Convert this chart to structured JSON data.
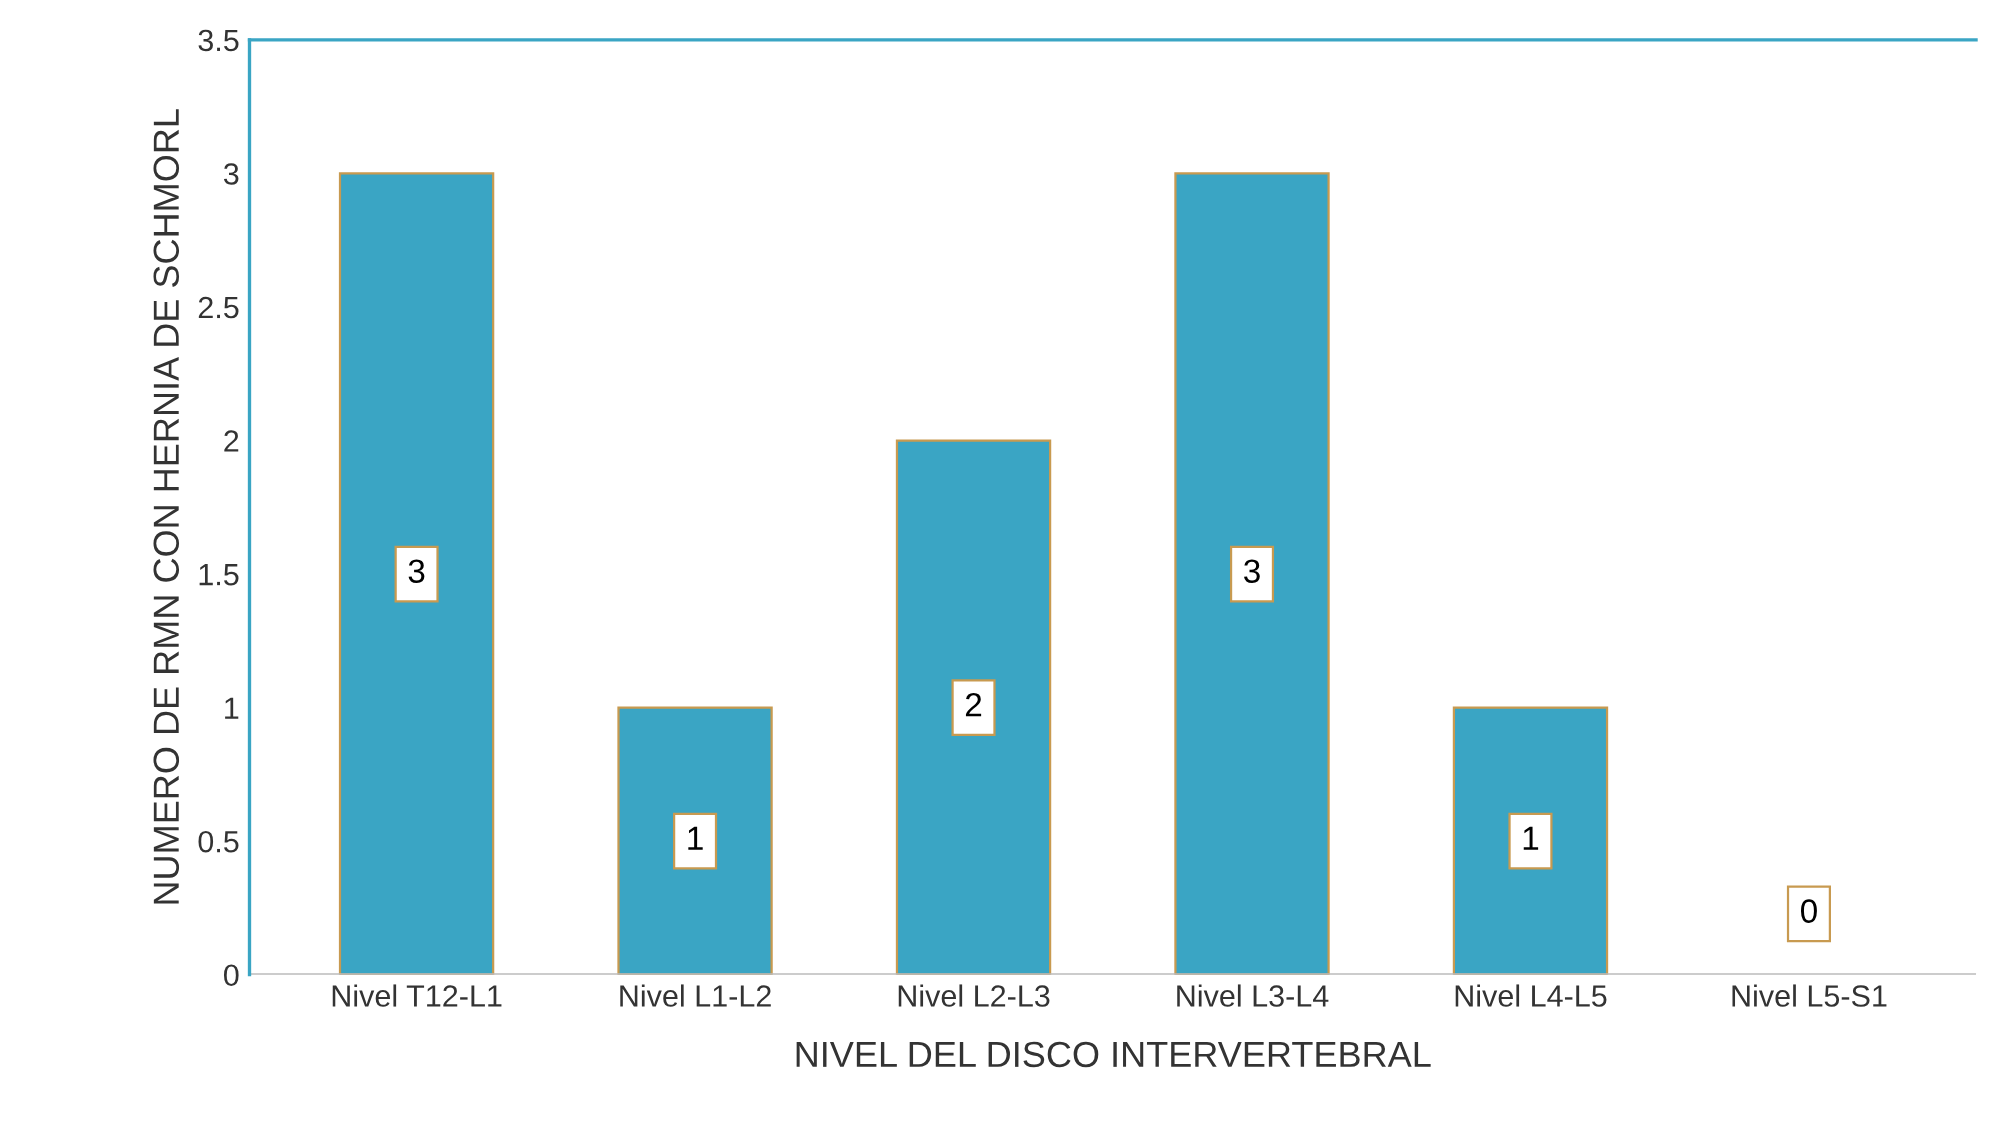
{
  "chart_data": {
    "type": "bar",
    "xlabel": "NIVEL DEL DISCO INTERVERTEBRAL",
    "ylabel": "NUMERO DE RMN CON HERNIA DE SCHMORL",
    "categories": [
      "Nivel T12-L1",
      "Nivel L1-L2",
      "Nivel L2-L3",
      "Nivel L3-L4",
      "Nivel L4-L5",
      "Nivel L5-S1"
    ],
    "values": [
      3,
      1,
      2,
      3,
      1,
      0
    ],
    "color": "#3aa5c4",
    "ylim": [
      0,
      3.5
    ],
    "yticks": [
      0,
      0.5,
      1,
      1.5,
      2,
      2.5,
      3,
      3.5
    ],
    "grid": false,
    "data_labels": true
  }
}
